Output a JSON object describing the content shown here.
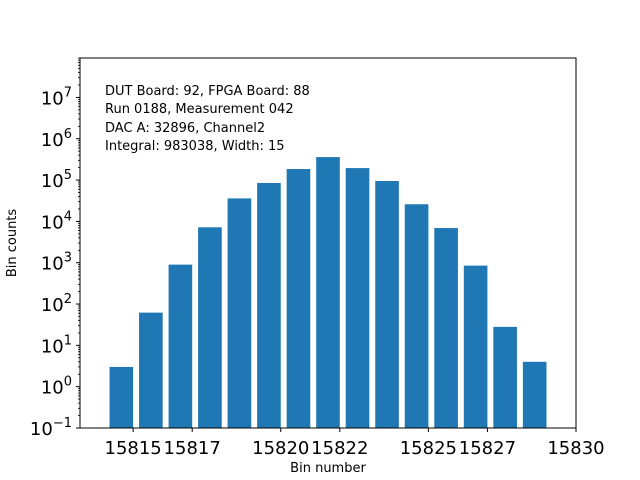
{
  "chart_data": {
    "type": "bar",
    "scale": "log",
    "x": [
      15814.6,
      15815.6,
      15816.6,
      15817.6,
      15818.6,
      15819.6,
      15820.6,
      15821.6,
      15822.6,
      15823.6,
      15824.6,
      15825.6,
      15826.6,
      15827.6,
      15828.6
    ],
    "values": [
      3,
      62,
      900,
      7200,
      36000,
      85000,
      185000,
      360000,
      195000,
      95000,
      26000,
      6900,
      850,
      28,
      4
    ],
    "xlim": [
      15813.2,
      15830.0
    ],
    "ylim": [
      0.1,
      90000000
    ],
    "x_ticks": [
      15815,
      15817,
      15820,
      15822,
      15825,
      15827,
      15830
    ],
    "x_tick_labels": [
      "15815",
      "15817",
      "15820",
      "15822",
      "15825",
      "15827",
      "15830"
    ],
    "y_ticks": [
      {
        "value": 0.1,
        "base": "10",
        "exp": "−1"
      },
      {
        "value": 1,
        "base": "10",
        "exp": "0"
      },
      {
        "value": 10,
        "base": "10",
        "exp": "1"
      },
      {
        "value": 100,
        "base": "10",
        "exp": "2"
      },
      {
        "value": 1000,
        "base": "10",
        "exp": "3"
      },
      {
        "value": 10000,
        "base": "10",
        "exp": "4"
      },
      {
        "value": 100000,
        "base": "10",
        "exp": "5"
      },
      {
        "value": 1000000,
        "base": "10",
        "exp": "6"
      },
      {
        "value": 10000000,
        "base": "10",
        "exp": "7"
      }
    ],
    "xlabel": "Bin number",
    "ylabel": "Bin counts",
    "annotations": [
      "DUT Board: 92, FPGA Board: 88",
      "Run 0188, Measurement 042",
      "DAC A: 32896, Channel2",
      "Integral: 983038, Width: 15"
    ],
    "bar_color": "#1f77b4"
  }
}
